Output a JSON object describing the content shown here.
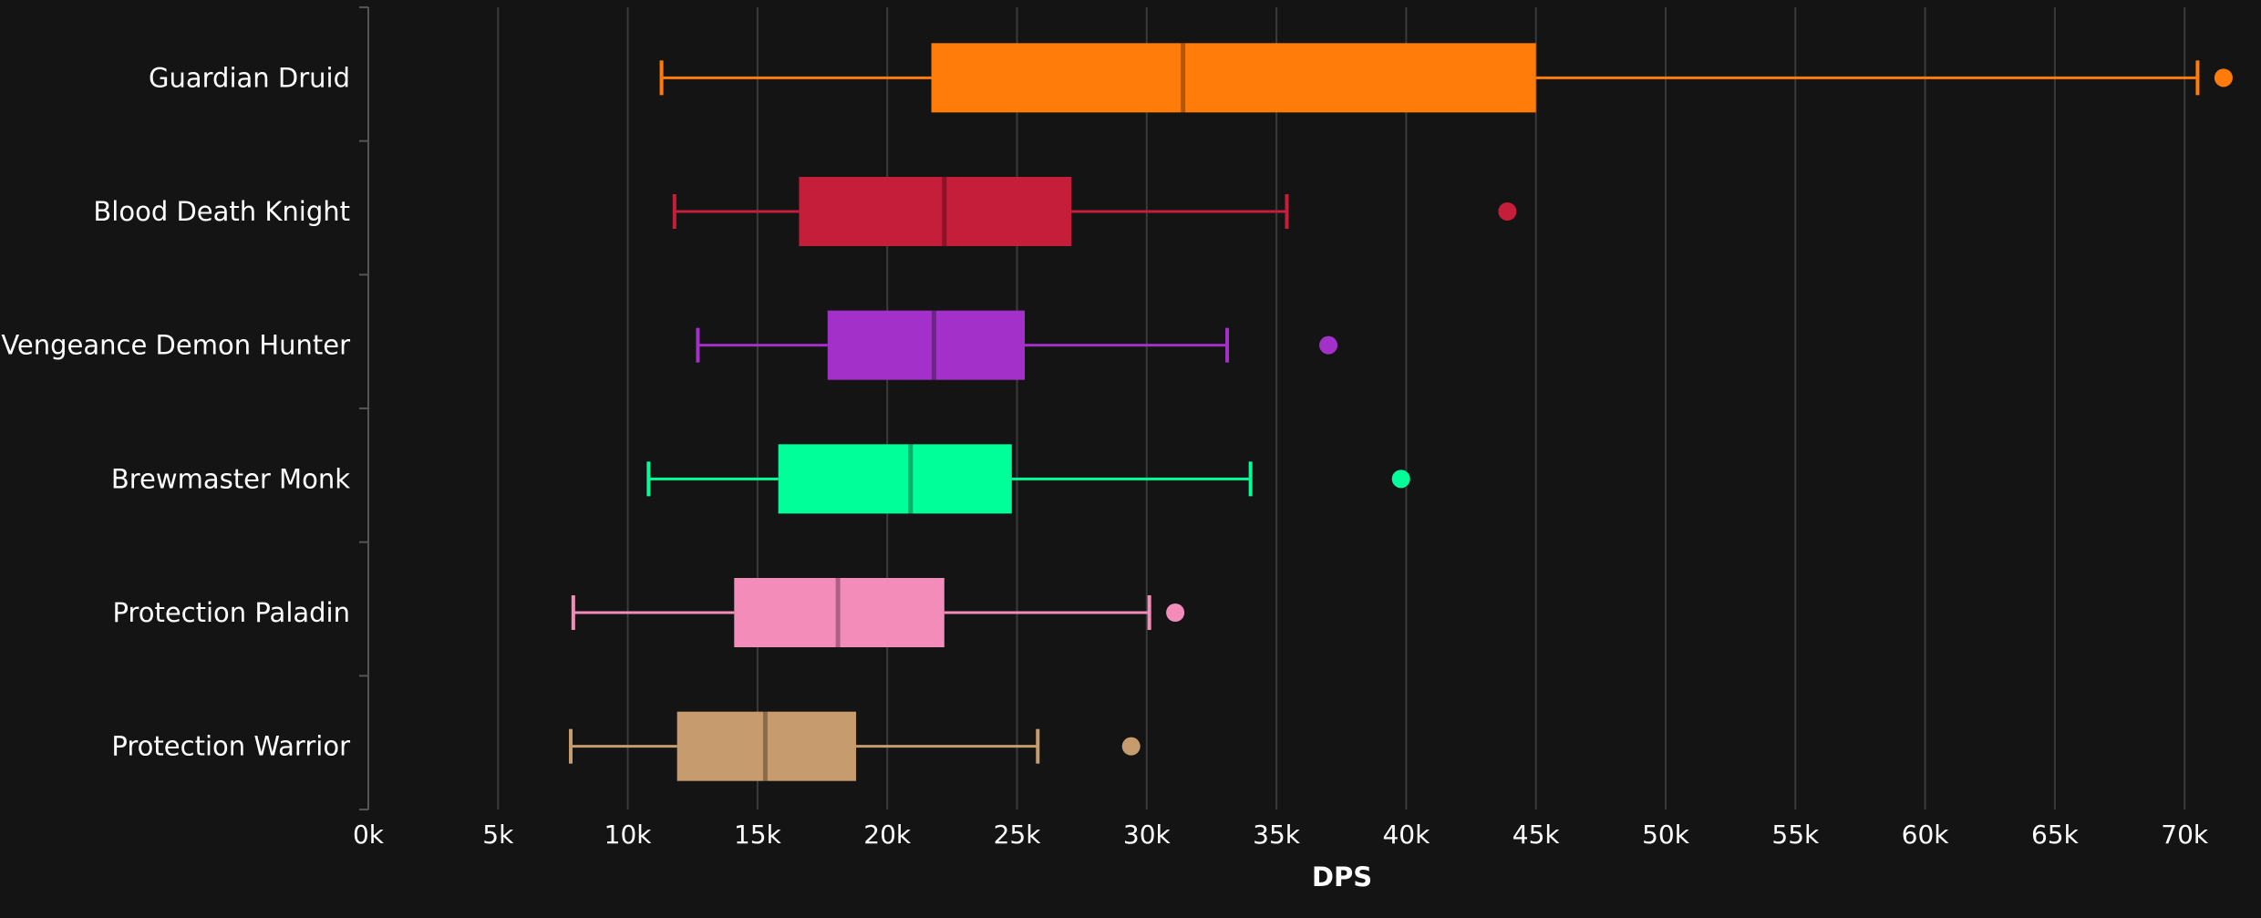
{
  "chart_data": {
    "type": "boxplot",
    "orientation": "horizontal",
    "xlabel": "DPS",
    "xlim": [
      0,
      72000
    ],
    "x_ticks": [
      0,
      5000,
      10000,
      15000,
      20000,
      25000,
      30000,
      35000,
      40000,
      45000,
      50000,
      55000,
      60000,
      65000,
      70000
    ],
    "x_tick_labels": [
      "0k",
      "5k",
      "10k",
      "15k",
      "20k",
      "25k",
      "30k",
      "35k",
      "40k",
      "45k",
      "50k",
      "55k",
      "60k",
      "65k",
      "70k"
    ],
    "grid": true,
    "legend": "none",
    "series": [
      {
        "category": "Guardian Druid",
        "color": "#ff7c0a",
        "whisker_low": 11300,
        "q1": 21700,
        "median": 31400,
        "q3": 45000,
        "whisker_high": 70500,
        "outliers": [
          71500
        ]
      },
      {
        "category": "Blood Death Knight",
        "color": "#c41e3a",
        "whisker_low": 11800,
        "q1": 16600,
        "median": 22200,
        "q3": 27100,
        "whisker_high": 35400,
        "outliers": [
          43900
        ]
      },
      {
        "category": "Vengeance Demon Hunter",
        "color": "#a330c9",
        "whisker_low": 12700,
        "q1": 17700,
        "median": 21800,
        "q3": 25300,
        "whisker_high": 33100,
        "outliers": [
          37000
        ]
      },
      {
        "category": "Brewmaster Monk",
        "color": "#00ff98",
        "whisker_low": 10800,
        "q1": 15800,
        "median": 20900,
        "q3": 24800,
        "whisker_high": 34000,
        "outliers": [
          39800
        ]
      },
      {
        "category": "Protection Paladin",
        "color": "#f48cba",
        "whisker_low": 7900,
        "q1": 14100,
        "median": 18100,
        "q3": 22200,
        "whisker_high": 30100,
        "outliers": [
          31100
        ]
      },
      {
        "category": "Protection Warrior",
        "color": "#c69b6d",
        "whisker_low": 7800,
        "q1": 11900,
        "median": 15300,
        "q3": 18800,
        "whisker_high": 25800,
        "outliers": [
          29400
        ]
      }
    ]
  }
}
